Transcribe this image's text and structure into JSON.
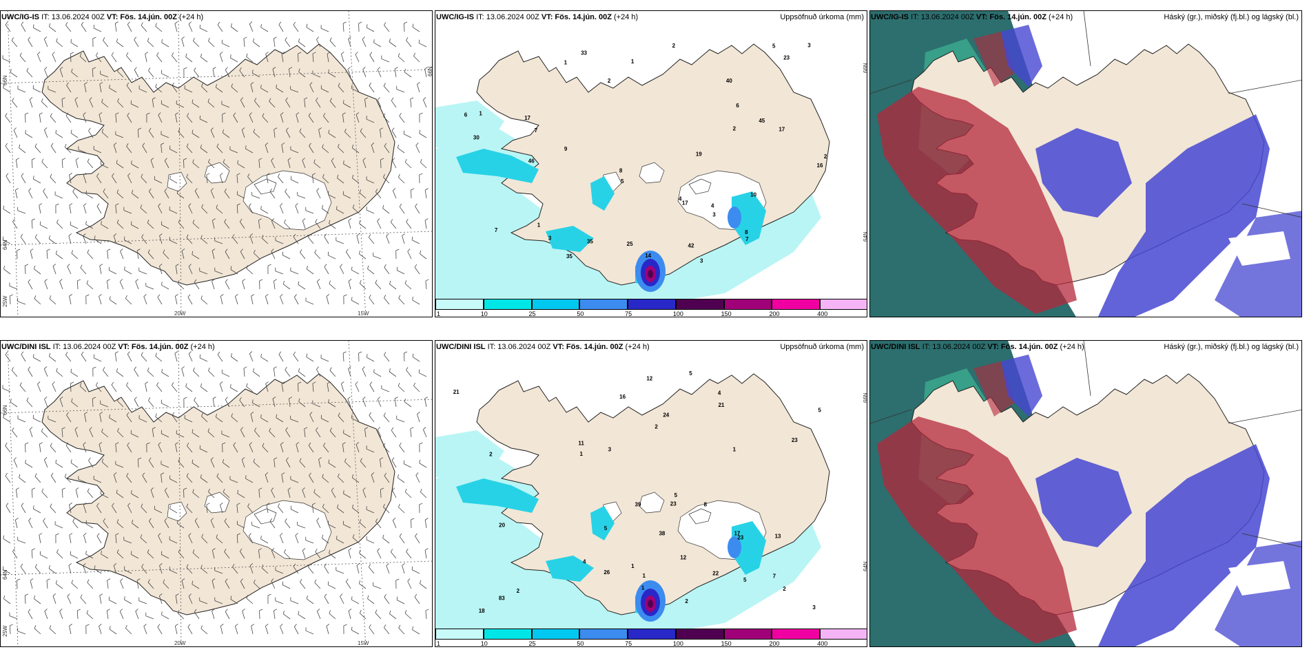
{
  "rows": [
    {
      "model": "UWC/IG-IS",
      "it": "IT: 13.06.2024 00Z",
      "vt_label": "VT:",
      "vt": "Fös. 14.jún. 00Z",
      "lead": "(+24 h)"
    },
    {
      "model": "UWC/DINI ISL",
      "it": "IT: 13.06.2024 00Z",
      "vt_label": "VT:",
      "vt": "Fös. 14.jún. 00Z",
      "lead": "(+24 h)"
    }
  ],
  "precip_title": "Uppsöfnuð úrkoma (mm)",
  "cloud_title": "Háský (gr.), miðský (fj.bl.) og lágský (bl.)",
  "grid_labels": {
    "lat66": "66N",
    "lat64": "64N",
    "lon25": "25W",
    "lon20": "20W",
    "lon15": "15W"
  },
  "colorbar": {
    "ticks": [
      "1",
      "10",
      "25",
      "50",
      "75",
      "100",
      "150",
      "200",
      "400"
    ],
    "colors": [
      "#c8fafa",
      "#00e6e6",
      "#00c8f0",
      "#3c8cf0",
      "#2828c8",
      "#500050",
      "#a00078",
      "#f000a0",
      "#f5b4f5"
    ]
  },
  "colors": {
    "land": "#f2e6d6",
    "sea": "#ffffff",
    "precip_light": "#b9f5f5",
    "precip_mid": "#28d2e6",
    "cloud_high": "#2d6e6e",
    "cloud_mid": "#b4283c",
    "cloud_low": "#4646d2"
  },
  "precip_values_top": [
    "3",
    "1",
    "1",
    "17",
    "45",
    "42",
    "16",
    "9",
    "5",
    "3",
    "7",
    "6",
    "8",
    "4",
    "2",
    "5",
    "30",
    "23",
    "10",
    "17",
    "8",
    "17",
    "35",
    "7",
    "19",
    "6",
    "46",
    "7",
    "14",
    "2",
    "3",
    "3",
    "40",
    "35",
    "33",
    "25",
    "2",
    "1",
    "2",
    "4",
    "1"
  ],
  "precip_values_bottom": [
    "83",
    "13",
    "5",
    "38",
    "16",
    "5",
    "7",
    "4",
    "5",
    "4",
    "3",
    "1",
    "26",
    "12",
    "22",
    "11",
    "17",
    "20",
    "39",
    "5",
    "21",
    "2",
    "1",
    "8",
    "23",
    "21",
    "3",
    "2",
    "23",
    "12",
    "2",
    "5",
    "24",
    "18",
    "23",
    "2",
    "1",
    "1",
    "2",
    "1"
  ]
}
